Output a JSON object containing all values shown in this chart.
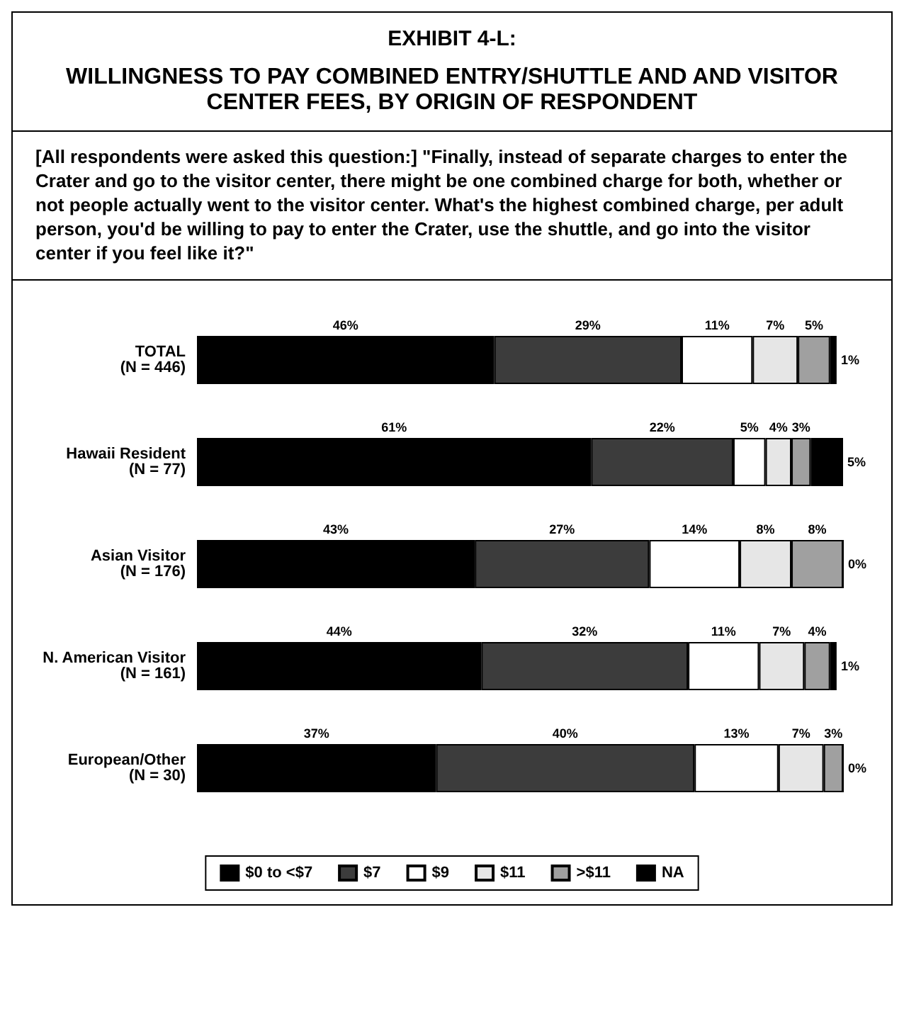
{
  "chart_data": {
    "type": "bar",
    "orientation": "horizontal",
    "stacked": true,
    "title": "EXHIBIT 4-L:",
    "subtitle": "WILLINGNESS TO PAY COMBINED ENTRY/SHUTTLE AND AND VISITOR CENTER FEES, BY ORIGIN OF RESPONDENT",
    "annotations": [
      "[All respondents were asked this question:] \"Finally, instead of separate charges to enter the Crater and go to the visitor center, there might be one combined charge for both, whether or not people actually went to the visitor center. What's the highest combined charge, per adult person, you'd be willing to pay to enter the Crater, use the shuttle, and go into the visitor center if you feel like it?\""
    ],
    "categories": [
      "TOTAL\n(N = 446)",
      "Hawaii Resident\n(N = 77)",
      "Asian Visitor\n(N = 176)",
      "N. American Visitor\n(N = 161)",
      "European/Other\n(N = 30)"
    ],
    "legend": "bottom",
    "series": [
      {
        "name": "$0 to <$7",
        "color": "#000000",
        "values": [
          46,
          61,
          43,
          44,
          37
        ],
        "value_labels": [
          "46%",
          "61%",
          "43%",
          "44%",
          "37%"
        ]
      },
      {
        "name": "$7",
        "color": "#3c3c3c",
        "values": [
          29,
          22,
          27,
          32,
          40
        ],
        "value_labels": [
          "29%",
          "22%",
          "27%",
          "32%",
          "40%"
        ]
      },
      {
        "name": "$9",
        "color": "#ffffff",
        "values": [
          11,
          5,
          14,
          11,
          13
        ],
        "value_labels": [
          "11%",
          "5%",
          "14%",
          "11%",
          "13%"
        ]
      },
      {
        "name": "$11",
        "color": "#e6e6e6",
        "values": [
          7,
          4,
          8,
          7,
          7
        ],
        "value_labels": [
          "7%",
          "4%",
          "8%",
          "7%",
          "7%"
        ]
      },
      {
        "name": ">$11",
        "color": "#a0a0a0",
        "values": [
          5,
          3,
          8,
          4,
          3
        ],
        "value_labels": [
          "5%",
          "3%",
          "8%",
          "4%",
          "3%"
        ]
      },
      {
        "name": "NA",
        "color": "#000000",
        "values": [
          1,
          5,
          0,
          1,
          0
        ],
        "value_labels": [
          "1%",
          "5%",
          "0%",
          "1%",
          "0%"
        ]
      }
    ]
  }
}
